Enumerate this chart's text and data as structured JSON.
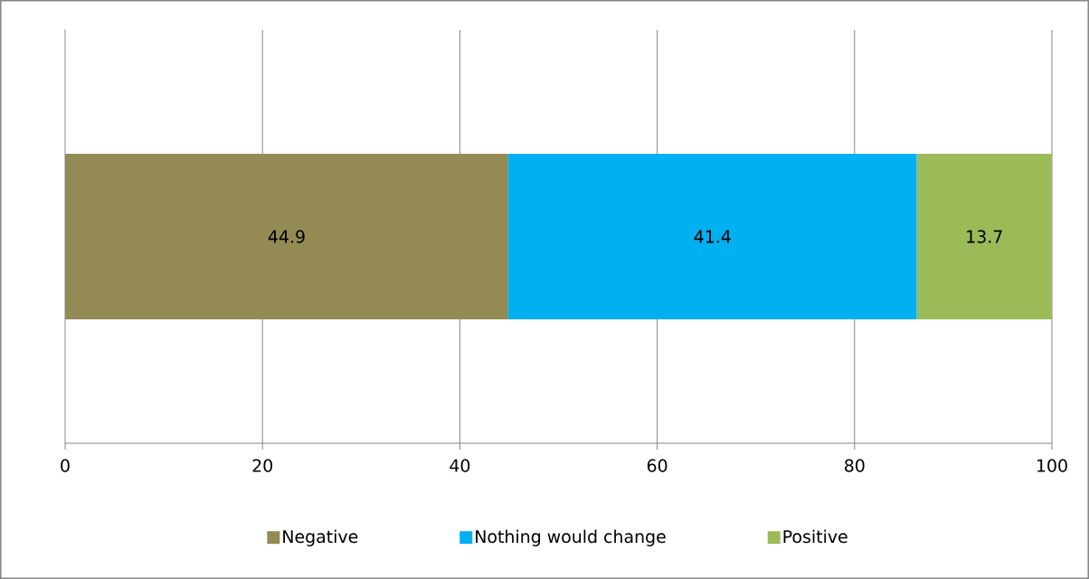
{
  "chart_data": {
    "type": "bar",
    "orientation": "horizontal",
    "stacked": true,
    "categories": [
      null
    ],
    "series": [
      {
        "name": "Negative",
        "color": "#948a54",
        "values": [
          44.9
        ]
      },
      {
        "name": "Nothing would change",
        "color": "#00b0f0",
        "values": [
          41.4
        ]
      },
      {
        "name": "Positive",
        "color": "#9bbb59",
        "values": [
          13.7
        ]
      }
    ],
    "xlim": [
      0,
      100
    ],
    "xticks": [
      0,
      20,
      40,
      60,
      80,
      100
    ],
    "grid": "x",
    "legend": "bottom",
    "data_labels": true
  }
}
